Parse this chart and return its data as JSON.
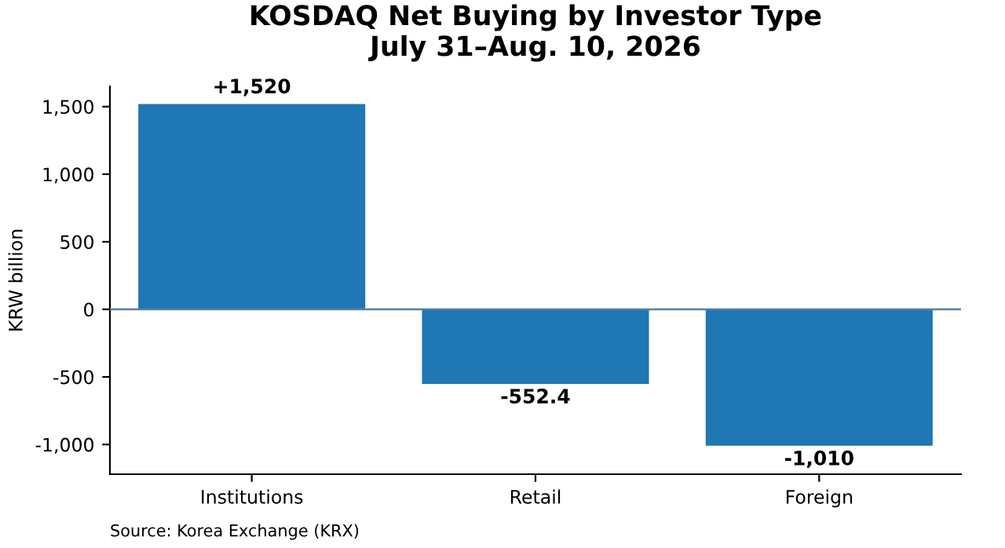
{
  "chart_data": {
    "type": "bar",
    "title": "KOSDAQ Net Buying by Investor Type\nJuly 31–Aug. 10, 2026",
    "ylabel": "KRW billion",
    "categories": [
      "Institutions",
      "Retail",
      "Foreign"
    ],
    "values": [
      1520,
      -552.4,
      -1010
    ],
    "color": "#1f77b4",
    "value_labels": [
      "+1,520",
      "-552.4",
      "-1,010"
    ],
    "ylim": [
      -1220,
      1650
    ],
    "yticks": [
      {
        "value": -1000,
        "label": "-1,000"
      },
      -500,
      0,
      500,
      {
        "value": 1000,
        "label": "1,000"
      },
      {
        "value": 1500,
        "label": "1,500"
      }
    ],
    "ref_lines": [
      {
        "axis": "y",
        "value": 0,
        "color": "#5a7fa0"
      }
    ],
    "annotations": [
      "Source: Korea Exchange (KRX)"
    ],
    "grid": false,
    "legend": false
  }
}
